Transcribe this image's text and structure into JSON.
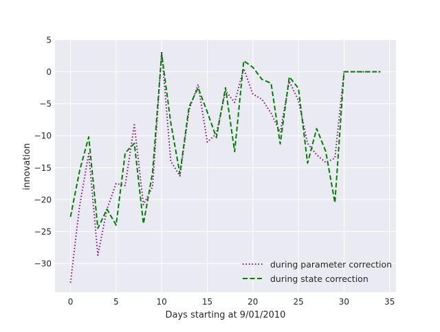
{
  "chart_data": {
    "type": "line",
    "xlabel": "Days starting at 9/01/2010",
    "ylabel": "innovation",
    "xlim": [
      -1.7,
      35.7
    ],
    "ylim": [
      -34.5,
      5.0
    ],
    "xticks": [
      0,
      5,
      10,
      15,
      20,
      25,
      30,
      35
    ],
    "yticks": [
      5,
      0,
      -5,
      -10,
      -15,
      -20,
      -25,
      -30
    ],
    "ytick_labels": [
      "5",
      "0",
      "−5",
      "−10",
      "−15",
      "−20",
      "−25",
      "−30"
    ],
    "grid": true,
    "legend_placement": "bottom-right",
    "series": [
      {
        "name": "during parameter correction",
        "color": "#800080",
        "style": "dotted",
        "x": [
          0,
          1,
          2,
          3,
          4,
          5,
          6,
          7,
          8,
          9,
          10,
          11,
          12,
          13,
          14,
          15,
          16,
          17,
          18,
          19,
          20,
          21,
          22,
          23,
          24,
          25,
          26,
          27,
          28,
          29,
          30,
          31,
          32,
          33,
          34
        ],
        "y": [
          -33,
          -21,
          -12.8,
          -28.7,
          -21.5,
          -17.5,
          -17.8,
          -8.3,
          -20.8,
          -18,
          3.2,
          -14,
          -16.3,
          -6,
          -2,
          -11,
          -9.7,
          -3,
          -4.8,
          0.5,
          -3.5,
          -4.3,
          -6.5,
          -9.5,
          -1.5,
          -4.5,
          -11.2,
          -13,
          -14.2,
          -13.5,
          0,
          0,
          0,
          0,
          0
        ]
      },
      {
        "name": "during state correction",
        "color": "#008000",
        "style": "dashed",
        "x": [
          0,
          1,
          2,
          3,
          4,
          5,
          6,
          7,
          8,
          9,
          10,
          11,
          12,
          13,
          14,
          15,
          16,
          17,
          18,
          19,
          20,
          21,
          22,
          23,
          24,
          25,
          26,
          27,
          28,
          29,
          30,
          31,
          32,
          33,
          34
        ],
        "y": [
          -22.7,
          -15.5,
          -10.2,
          -24.5,
          -21.5,
          -24,
          -12.7,
          -11.2,
          -23.8,
          -15.8,
          2.8,
          -8,
          -16,
          -5.5,
          -2.5,
          -6.3,
          -10.3,
          -2.5,
          -12.5,
          1.7,
          0.7,
          -1.2,
          -1.8,
          -11.3,
          -0.8,
          -2.6,
          -14.3,
          -8.9,
          -12.5,
          -20.5,
          0,
          0,
          0,
          0,
          0
        ]
      }
    ]
  }
}
